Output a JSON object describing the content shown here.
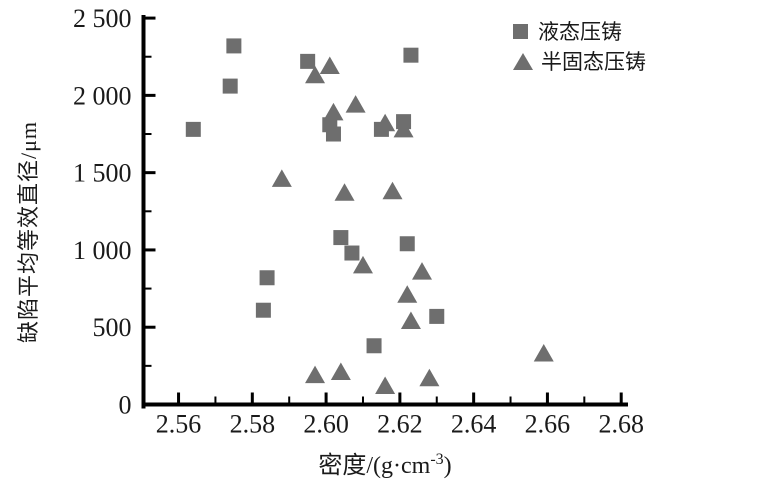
{
  "chart_data": {
    "type": "scatter",
    "title": "",
    "xlabel": "密度/(g·cm-3)",
    "xlabel_prefix": "密度/(g·cm",
    "xlabel_sup": "-3",
    "xlabel_suffix": ")",
    "ylabel": "缺陷平均等效直径/μm",
    "xlim": [
      2.5505,
      2.6813
    ],
    "ylim": [
      0,
      2520
    ],
    "grid": false,
    "legend_position": "top-right",
    "marker_color": "#6e6e6e",
    "axis_color": "#000000",
    "x_major_ticks": [
      2.56,
      2.58,
      2.6,
      2.62,
      2.64,
      2.66,
      2.68
    ],
    "x_tick_labels": [
      "2.56",
      "2.58",
      "2.60",
      "2.62",
      "2.64",
      "2.66",
      "2.68"
    ],
    "x_minor_ticks": [
      2.57,
      2.59,
      2.61,
      2.63,
      2.65,
      2.67
    ],
    "y_major_ticks": [
      0,
      500,
      1000,
      1500,
      2000,
      2500
    ],
    "y_tick_labels": [
      "0",
      "500",
      "1 000",
      "1 500",
      "2 000",
      "2 500"
    ],
    "y_minor_ticks": [
      250,
      750,
      1250,
      1750,
      2250
    ],
    "series": [
      {
        "name": "液态压铸",
        "marker": "square",
        "points": [
          [
            2.564,
            1780
          ],
          [
            2.575,
            2320
          ],
          [
            2.574,
            2060
          ],
          [
            2.595,
            2220
          ],
          [
            2.601,
            1810
          ],
          [
            2.602,
            1750
          ],
          [
            2.615,
            1780
          ],
          [
            2.621,
            1830
          ],
          [
            2.623,
            2260
          ],
          [
            2.604,
            1080
          ],
          [
            2.607,
            980
          ],
          [
            2.622,
            1040
          ],
          [
            2.584,
            820
          ],
          [
            2.583,
            610
          ],
          [
            2.613,
            380
          ],
          [
            2.63,
            570
          ]
        ]
      },
      {
        "name": "半固态压铸",
        "marker": "triangle",
        "points": [
          [
            2.597,
            2130
          ],
          [
            2.601,
            2190
          ],
          [
            2.608,
            1940
          ],
          [
            2.602,
            1890
          ],
          [
            2.616,
            1820
          ],
          [
            2.621,
            1780
          ],
          [
            2.588,
            1460
          ],
          [
            2.605,
            1370
          ],
          [
            2.618,
            1380
          ],
          [
            2.61,
            900
          ],
          [
            2.626,
            860
          ],
          [
            2.622,
            710
          ],
          [
            2.623,
            540
          ],
          [
            2.597,
            190
          ],
          [
            2.604,
            210
          ],
          [
            2.616,
            120
          ],
          [
            2.628,
            170
          ],
          [
            2.659,
            330
          ]
        ]
      }
    ]
  }
}
